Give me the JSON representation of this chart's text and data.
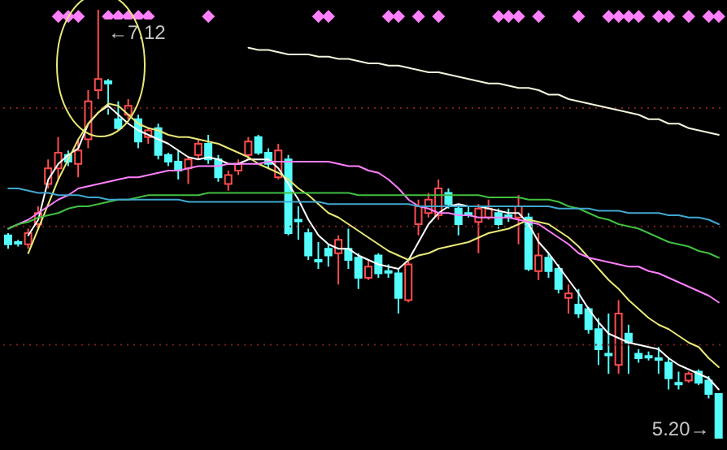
{
  "chart_data": {
    "type": "candlestick",
    "categories": [
      null,
      null,
      null,
      null,
      null,
      null,
      null,
      null,
      null,
      null,
      null,
      null,
      null,
      null,
      null,
      null,
      null,
      null,
      null,
      null,
      null,
      null,
      null,
      null,
      null,
      null,
      null,
      null,
      null,
      null,
      null,
      null,
      null,
      null,
      null,
      null,
      null,
      null,
      null,
      null,
      null,
      null,
      null,
      null,
      null,
      null,
      null,
      null,
      null,
      null,
      null,
      null,
      null,
      null,
      null,
      null,
      null,
      null,
      null,
      null,
      null,
      null,
      null,
      null,
      null,
      null,
      null,
      null,
      null,
      null,
      null,
      null
    ],
    "ohlc": [
      [
        6.11,
        6.12,
        6.05,
        6.07
      ],
      [
        6.08,
        6.09,
        6.06,
        6.08
      ],
      [
        6.07,
        6.14,
        6.05,
        6.12
      ],
      [
        6.16,
        6.24,
        6.14,
        6.21
      ],
      [
        6.34,
        6.45,
        6.32,
        6.41
      ],
      [
        6.41,
        6.55,
        6.36,
        6.48
      ],
      [
        6.47,
        6.49,
        6.42,
        6.44
      ],
      [
        6.43,
        6.54,
        6.37,
        6.49
      ],
      [
        6.54,
        6.76,
        6.5,
        6.71
      ],
      [
        6.76,
        7.12,
        6.72,
        6.81
      ],
      [
        6.8,
        6.81,
        6.65,
        6.79
      ],
      [
        6.63,
        6.71,
        6.58,
        6.59
      ],
      [
        6.65,
        6.72,
        6.63,
        6.69
      ],
      [
        6.63,
        6.65,
        6.5,
        6.53
      ],
      [
        6.55,
        6.59,
        6.52,
        6.58
      ],
      [
        6.59,
        6.61,
        6.45,
        6.47
      ],
      [
        6.47,
        6.48,
        6.42,
        6.44
      ],
      [
        6.44,
        6.49,
        6.36,
        6.4
      ],
      [
        6.41,
        6.46,
        6.34,
        6.45
      ],
      [
        6.47,
        6.54,
        6.45,
        6.52
      ],
      [
        6.52,
        6.56,
        6.43,
        6.45
      ],
      [
        6.45,
        6.47,
        6.35,
        6.37
      ],
      [
        6.34,
        6.4,
        6.31,
        6.38
      ],
      [
        6.4,
        6.45,
        6.38,
        6.43
      ],
      [
        6.47,
        6.55,
        6.45,
        6.53
      ],
      [
        6.55,
        6.56,
        6.47,
        6.48
      ],
      [
        6.48,
        6.5,
        6.41,
        6.43
      ],
      [
        6.37,
        6.52,
        6.36,
        6.49
      ],
      [
        6.45,
        6.47,
        6.11,
        6.12
      ],
      [
        6.18,
        6.24,
        6.09,
        6.18
      ],
      [
        6.12,
        6.14,
        6.0,
        6.02
      ],
      [
        6.0,
        6.08,
        5.96,
        6.0
      ],
      [
        6.05,
        6.07,
        5.97,
        6.02
      ],
      [
        6.03,
        6.11,
        5.89,
        6.09
      ],
      [
        6.05,
        6.14,
        5.96,
        6.0
      ],
      [
        6.01,
        6.03,
        5.87,
        5.92
      ],
      [
        5.92,
        6.0,
        5.91,
        5.97
      ],
      [
        6.02,
        6.03,
        5.92,
        5.94
      ],
      [
        5.95,
        5.98,
        5.92,
        5.95
      ],
      [
        5.94,
        5.96,
        5.76,
        5.83
      ],
      [
        5.82,
        6.0,
        5.81,
        5.98
      ],
      [
        6.16,
        6.27,
        6.11,
        6.24
      ],
      [
        6.21,
        6.3,
        6.19,
        6.27
      ],
      [
        6.2,
        6.36,
        6.18,
        6.32
      ],
      [
        6.3,
        6.32,
        6.23,
        6.25
      ],
      [
        6.23,
        6.25,
        6.11,
        6.16
      ],
      [
        6.21,
        6.24,
        6.19,
        6.21
      ],
      [
        6.17,
        6.25,
        6.03,
        6.23
      ],
      [
        6.19,
        6.27,
        6.18,
        6.23
      ],
      [
        6.21,
        6.23,
        6.14,
        6.16
      ],
      [
        6.2,
        6.23,
        6.17,
        6.2
      ],
      [
        6.19,
        6.29,
        6.07,
        6.24
      ],
      [
        6.19,
        6.21,
        5.95,
        5.96
      ],
      [
        5.95,
        6.12,
        5.91,
        6.02
      ],
      [
        6.01,
        6.03,
        5.92,
        5.95
      ],
      [
        5.96,
        5.98,
        5.85,
        5.87
      ],
      [
        5.83,
        5.89,
        5.76,
        5.85
      ],
      [
        5.8,
        5.87,
        5.74,
        5.76
      ],
      [
        5.78,
        5.79,
        5.67,
        5.69
      ],
      [
        5.69,
        5.74,
        5.53,
        5.6
      ],
      [
        5.58,
        5.76,
        5.49,
        5.58
      ],
      [
        5.53,
        5.82,
        5.49,
        5.76
      ],
      [
        5.67,
        5.71,
        5.49,
        5.63
      ],
      [
        5.58,
        5.6,
        5.54,
        5.56
      ],
      [
        5.57,
        5.59,
        5.55,
        5.57
      ],
      [
        5.56,
        5.61,
        5.49,
        5.56
      ],
      [
        5.54,
        5.56,
        5.42,
        5.47
      ],
      [
        5.45,
        5.5,
        5.42,
        5.45
      ],
      [
        5.46,
        5.5,
        5.45,
        5.49
      ],
      [
        5.5,
        5.51,
        5.44,
        5.45
      ],
      [
        5.46,
        5.48,
        5.38,
        5.4
      ],
      [
        5.4,
        5.4,
        5.2,
        5.2
      ]
    ],
    "colors": [
      "#54fcfc",
      "#54fcfc",
      "#ff4d4d",
      "#ff4d4d",
      "#ff4d4d",
      "#ff4d4d",
      "#54fcfc",
      "#ff4d4d",
      "#ff4d4d",
      "#ff4d4d",
      "#54fcfc",
      "#54fcfc",
      "#ff4d4d",
      "#54fcfc",
      "#ff4d4d",
      "#54fcfc",
      "#54fcfc",
      "#54fcfc",
      "#ff4d4d",
      "#ff4d4d",
      "#54fcfc",
      "#54fcfc",
      "#ff4d4d",
      "#ff4d4d",
      "#ff4d4d",
      "#54fcfc",
      "#54fcfc",
      "#ff4d4d",
      "#54fcfc",
      "#54fcfc",
      "#54fcfc",
      "#54fcfc",
      "#54fcfc",
      "#ff4d4d",
      "#54fcfc",
      "#54fcfc",
      "#ff4d4d",
      "#54fcfc",
      "#54fcfc",
      "#54fcfc",
      "#ff4d4d",
      "#ff4d4d",
      "#ff4d4d",
      "#ff4d4d",
      "#54fcfc",
      "#54fcfc",
      "#54fcfc",
      "#ff4d4d",
      "#ff4d4d",
      "#54fcfc",
      "#54fcfc",
      "#ff4d4d",
      "#54fcfc",
      "#ff4d4d",
      "#54fcfc",
      "#54fcfc",
      "#ff4d4d",
      "#54fcfc",
      "#54fcfc",
      "#54fcfc",
      "#54fcfc",
      "#ff4d4d",
      "#54fcfc",
      "#54fcfc",
      "#54fcfc",
      "#54fcfc",
      "#54fcfc",
      "#54fcfc",
      "#ff4d4d",
      "#54fcfc",
      "#54fcfc",
      "#54fcfc"
    ],
    "series": [
      {
        "type": "line",
        "color": "#ffffff",
        "values": [
          null,
          null,
          6.11,
          6.18,
          6.36,
          6.43,
          6.47,
          6.5,
          6.61,
          6.66,
          6.69,
          6.65,
          6.61,
          6.58,
          6.56,
          6.54,
          6.52,
          6.49,
          6.46,
          6.45,
          6.46,
          6.45,
          6.43,
          6.43,
          6.45,
          6.45,
          6.45,
          6.41,
          6.34,
          6.27,
          6.18,
          6.11,
          6.07,
          6.05,
          6.05,
          6.02,
          6.0,
          5.98,
          5.97,
          5.96,
          6.0,
          6.08,
          6.16,
          6.21,
          6.24,
          6.25,
          6.24,
          6.24,
          6.23,
          6.22,
          6.21,
          6.21,
          6.16,
          6.08,
          6.03,
          5.97,
          5.91,
          5.85,
          5.78,
          5.72,
          5.67,
          5.65,
          5.63,
          5.62,
          5.61,
          5.6,
          5.56,
          5.53,
          5.51,
          5.49,
          5.47,
          5.42
        ]
      },
      {
        "type": "line",
        "color": "#e8e878",
        "values": [
          null,
          null,
          6.03,
          6.14,
          6.25,
          6.36,
          6.45,
          6.54,
          6.61,
          6.66,
          6.7,
          6.69,
          6.65,
          6.61,
          6.59,
          6.58,
          6.56,
          6.55,
          6.55,
          6.54,
          6.53,
          6.52,
          6.5,
          6.48,
          6.46,
          6.43,
          6.41,
          6.39,
          6.36,
          6.32,
          6.29,
          6.25,
          6.21,
          6.19,
          6.16,
          6.13,
          6.1,
          6.07,
          6.04,
          6.02,
          6.0,
          6.02,
          6.03,
          6.05,
          6.06,
          6.07,
          6.08,
          6.1,
          6.12,
          6.13,
          6.14,
          6.16,
          6.18,
          6.17,
          6.16,
          6.13,
          6.1,
          6.06,
          6.01,
          5.96,
          5.91,
          5.87,
          5.82,
          5.78,
          5.74,
          5.71,
          5.69,
          5.66,
          5.63,
          5.61,
          5.56,
          5.52
        ]
      },
      {
        "type": "line",
        "color": "#ff80ff",
        "values": [
          6.14,
          6.16,
          6.18,
          6.21,
          6.24,
          6.27,
          6.29,
          6.32,
          6.33,
          6.34,
          6.35,
          6.36,
          6.37,
          6.37,
          6.38,
          6.39,
          6.4,
          6.4,
          6.41,
          6.42,
          6.42,
          6.42,
          6.43,
          6.43,
          6.43,
          6.43,
          6.44,
          6.44,
          6.44,
          6.44,
          6.44,
          6.44,
          6.44,
          6.43,
          6.42,
          6.42,
          6.4,
          6.39,
          6.36,
          6.32,
          6.27,
          6.24,
          6.23,
          6.21,
          6.21,
          6.2,
          6.2,
          6.19,
          6.19,
          6.19,
          6.19,
          6.18,
          6.17,
          6.16,
          6.13,
          6.1,
          6.07,
          6.03,
          6.01,
          6.0,
          5.99,
          5.98,
          5.97,
          5.97,
          5.95,
          5.94,
          5.92,
          5.9,
          5.88,
          5.86,
          5.84,
          5.81
        ]
      },
      {
        "type": "line",
        "color": "#40c040",
        "values": [
          6.14,
          6.16,
          6.17,
          6.19,
          6.2,
          6.21,
          6.23,
          6.24,
          6.24,
          6.25,
          6.26,
          6.27,
          6.27,
          6.28,
          6.29,
          6.29,
          6.29,
          6.29,
          6.29,
          6.29,
          6.3,
          6.3,
          6.3,
          6.3,
          6.3,
          6.3,
          6.3,
          6.3,
          6.3,
          6.3,
          6.3,
          6.3,
          6.3,
          6.3,
          6.3,
          6.29,
          6.29,
          6.29,
          6.29,
          6.29,
          6.29,
          6.29,
          6.29,
          6.29,
          6.29,
          6.29,
          6.29,
          6.29,
          6.28,
          6.28,
          6.28,
          6.28,
          6.27,
          6.27,
          6.27,
          6.26,
          6.24,
          6.23,
          6.21,
          6.19,
          6.18,
          6.16,
          6.15,
          6.14,
          6.12,
          6.1,
          6.08,
          6.07,
          6.06,
          6.04,
          6.03,
          6.01
        ]
      },
      {
        "type": "line",
        "color": "#40a8d0",
        "values": [
          6.32,
          6.32,
          6.31,
          6.3,
          6.3,
          6.29,
          6.29,
          6.29,
          6.28,
          6.28,
          6.27,
          6.27,
          6.27,
          6.27,
          6.27,
          6.27,
          6.27,
          6.27,
          6.26,
          6.26,
          6.26,
          6.26,
          6.26,
          6.26,
          6.26,
          6.26,
          6.26,
          6.26,
          6.26,
          6.26,
          6.26,
          6.26,
          6.25,
          6.25,
          6.25,
          6.25,
          6.25,
          6.25,
          6.25,
          6.25,
          6.25,
          6.24,
          6.24,
          6.24,
          6.24,
          6.24,
          6.24,
          6.24,
          6.24,
          6.24,
          6.24,
          6.24,
          6.24,
          6.24,
          6.24,
          6.23,
          6.23,
          6.23,
          6.23,
          6.22,
          6.22,
          6.22,
          6.21,
          6.21,
          6.21,
          6.21,
          6.2,
          6.2,
          6.19,
          6.19,
          6.18,
          6.16
        ]
      },
      {
        "type": "line",
        "color": "#f4f4dc",
        "values": [
          null,
          null,
          null,
          null,
          null,
          null,
          null,
          null,
          null,
          null,
          null,
          null,
          null,
          null,
          null,
          null,
          null,
          null,
          null,
          null,
          null,
          null,
          null,
          null,
          6.95,
          6.94,
          6.94,
          6.93,
          6.92,
          6.92,
          6.92,
          6.91,
          6.91,
          6.9,
          6.9,
          6.89,
          6.88,
          6.88,
          6.87,
          6.87,
          6.86,
          6.85,
          6.84,
          6.84,
          6.83,
          6.82,
          6.81,
          6.8,
          6.79,
          6.79,
          6.78,
          6.77,
          6.77,
          6.76,
          6.74,
          6.74,
          6.72,
          6.71,
          6.7,
          6.69,
          6.68,
          6.67,
          6.66,
          6.65,
          6.63,
          6.63,
          6.61,
          6.61,
          6.59,
          6.58,
          6.57,
          6.56
        ]
      },
      {
        "type": "scatter",
        "marker": "diamond",
        "color": "#ff80ff",
        "values": [
          null,
          null,
          null,
          null,
          null,
          7.09,
          7.09,
          7.09,
          null,
          null,
          7.09,
          7.09,
          7.09,
          7.09,
          7.09,
          null,
          null,
          null,
          null,
          null,
          7.09,
          null,
          null,
          null,
          null,
          null,
          null,
          null,
          null,
          null,
          null,
          7.09,
          7.09,
          null,
          null,
          null,
          null,
          null,
          7.09,
          7.09,
          null,
          7.09,
          null,
          7.09,
          null,
          null,
          null,
          null,
          null,
          7.09,
          7.09,
          7.09,
          null,
          7.09,
          null,
          null,
          null,
          7.09,
          null,
          null,
          7.09,
          7.09,
          7.09,
          7.09,
          null,
          7.09,
          7.09,
          null,
          7.09,
          null,
          7.09,
          7.09
        ]
      }
    ],
    "annotations": [
      {
        "text": "←7.12",
        "y": 7.12
      },
      "5.20→"
    ],
    "yticks": [
      {
        "value": 6.68,
        "label": null
      },
      {
        "value": 6.15,
        "label": null
      },
      {
        "value": 5.62,
        "label": null
      }
    ],
    "grid": "y",
    "tick_labels": false
  }
}
